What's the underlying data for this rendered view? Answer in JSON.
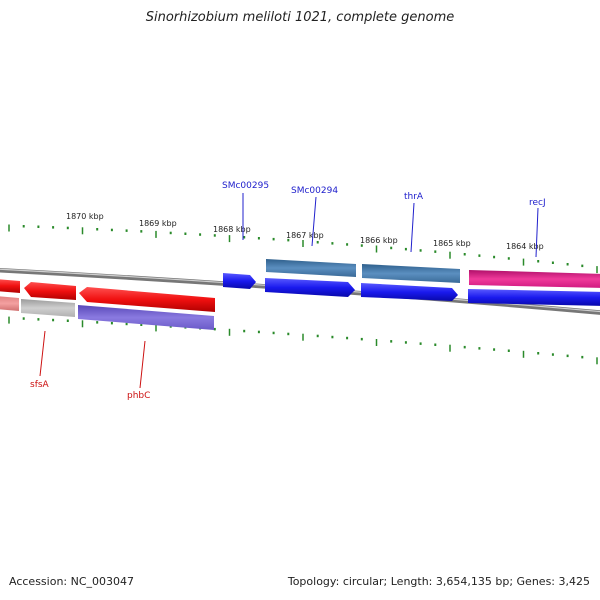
{
  "title": "Sinorhizobium meliloti 1021, complete genome",
  "footer": {
    "accession": "Accession: NC_003047",
    "summary": "Topology: circular; Length: 3,654,135 bp; Genes: 3,425"
  },
  "colors": {
    "forward_strand": "#1a1aee",
    "forward_rna": "#4a7fb0",
    "reverse_strand": "#e81010",
    "reverse_gray": "#b5b5b5",
    "reverse_purple": "#7060c8",
    "pink_gene": "#e0208a",
    "tick": "#2a8a2a",
    "backbone": "#888888"
  },
  "kbp_labels": [
    "1870 kbp",
    "1869 kbp",
    "1868 kbp",
    "1867 kbp",
    "1866 kbp",
    "1865 kbp",
    "1864 kbp"
  ],
  "gene_labels": {
    "forward": [
      "SMc00295",
      "SMc00294",
      "thrA",
      "recJ"
    ],
    "reverse": [
      "sfsA",
      "phbC"
    ]
  }
}
